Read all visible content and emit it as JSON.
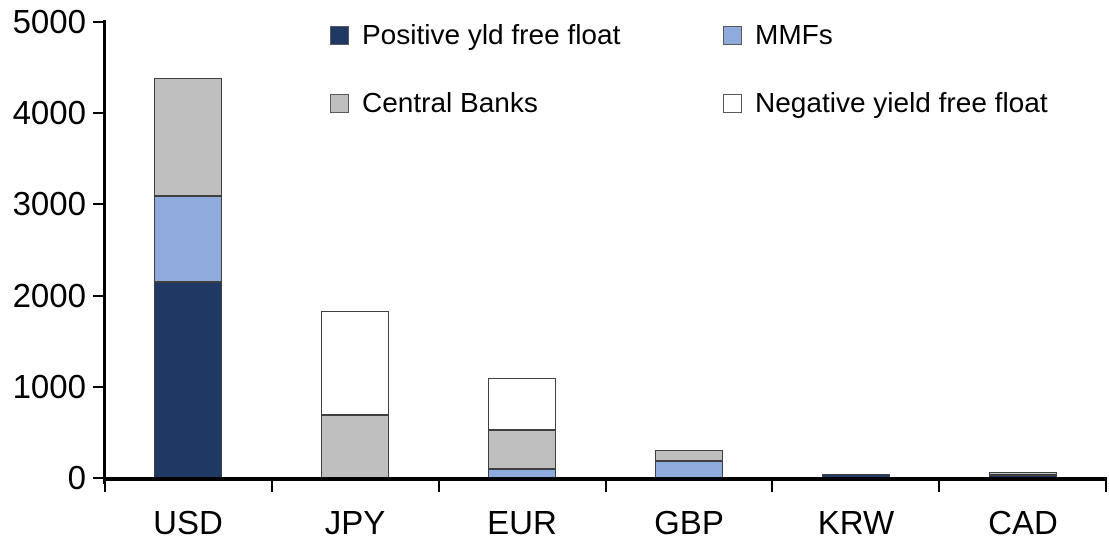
{
  "chart_data": {
    "type": "bar",
    "stacked": true,
    "title": "",
    "xlabel": "",
    "ylabel": "",
    "grid": false,
    "legend_position": "top",
    "categories": [
      "USD",
      "JPY",
      "EUR",
      "GBP",
      "KRW",
      "CAD"
    ],
    "series": [
      {
        "name": "Positive yld free float",
        "color": "#1F3864",
        "values": [
          2150,
          0,
          0,
          0,
          40,
          30
        ]
      },
      {
        "name": "MMFs",
        "color": "#8FAADC",
        "values": [
          940,
          0,
          100,
          190,
          0,
          0
        ]
      },
      {
        "name": "Central Banks",
        "color": "#BFBFBF",
        "values": [
          1290,
          690,
          430,
          120,
          0,
          30
        ]
      },
      {
        "name": "Negative yield free float",
        "color": "#FFFFFF",
        "values": [
          0,
          1140,
          570,
          0,
          0,
          0
        ]
      }
    ],
    "totals": [
      4380,
      1830,
      1100,
      310,
      40,
      60
    ],
    "ylim": [
      0,
      5000
    ],
    "yticks": [
      0,
      1000,
      2000,
      3000,
      4000,
      5000
    ],
    "legend_rows": [
      [
        "Positive yld free float",
        "MMFs"
      ],
      [
        "Central Banks",
        "Negative yield free float"
      ]
    ]
  },
  "style": {
    "axis_color": "#000000",
    "text_color": "#000000",
    "bar_border_color": "#3F3F3F",
    "legend_swatch_border": "#595959",
    "background": "#FFFFFF"
  }
}
